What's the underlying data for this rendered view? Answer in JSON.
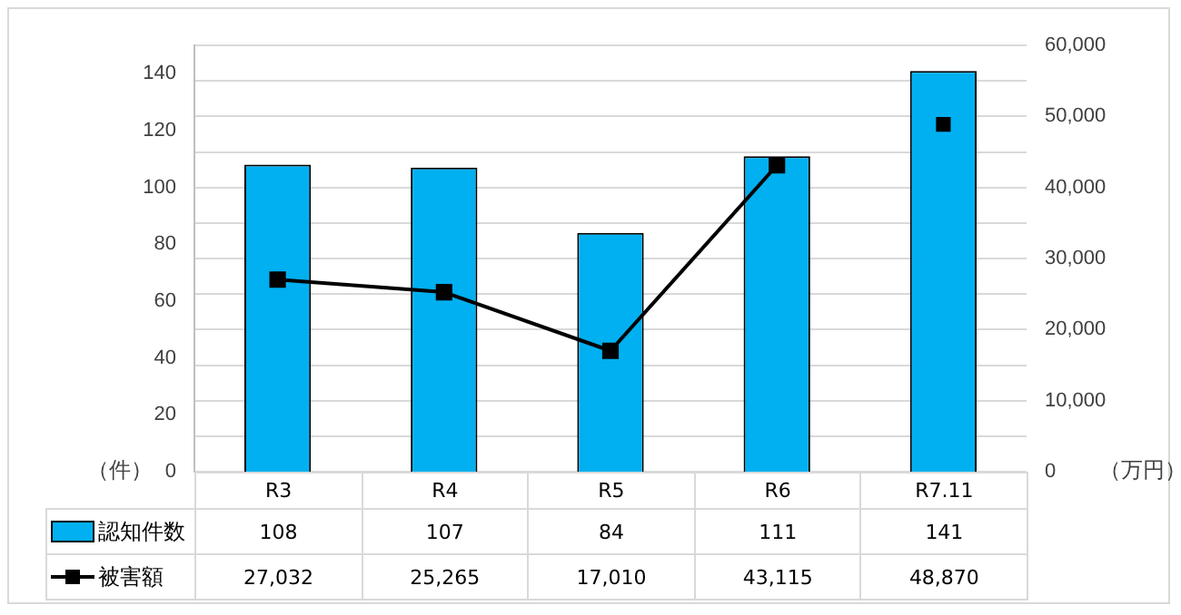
{
  "chart_data": {
    "type": "bar",
    "categories": [
      "R3",
      "R4",
      "R5",
      "R6",
      "R7.11"
    ],
    "ylabel": "（件）",
    "y2label": "（万円）",
    "ylim": [
      0,
      150
    ],
    "yticks": [
      0,
      20,
      40,
      60,
      80,
      100,
      120,
      140
    ],
    "y2lim": [
      0,
      60000
    ],
    "y2ticks": [
      0,
      {
        "value": 5000,
        "label": null
      },
      {
        "value": 10000,
        "label": "10,000"
      },
      {
        "value": 15000,
        "label": null
      },
      {
        "value": 20000,
        "label": "20,000"
      },
      {
        "value": 25000,
        "label": null
      },
      {
        "value": 30000,
        "label": "30,000"
      },
      {
        "value": 35000,
        "label": null
      },
      {
        "value": 40000,
        "label": "40,000"
      },
      {
        "value": 45000,
        "label": null
      },
      {
        "value": 50000,
        "label": "50,000"
      },
      {
        "value": 55000,
        "label": null
      },
      {
        "value": 60000,
        "label": "60,000"
      }
    ],
    "grid": true,
    "legend": "bottom left",
    "series": [
      {
        "name": "認知件数",
        "color": "#00b0f0",
        "values": [
          108,
          107,
          84,
          111,
          141
        ],
        "value_labels": [
          "108",
          "107",
          "84",
          "111",
          "141"
        ]
      },
      {
        "name": "被害額",
        "type": "line",
        "axis": "y2",
        "color": "#000000",
        "marker": "square",
        "values": [
          27032,
          25265,
          17010,
          43115,
          null
        ],
        "value_labels": [
          "27,032",
          "25,265",
          "17,010",
          "43,115",
          "48,870"
        ]
      },
      {
        "type": "scatter",
        "axis": "y2",
        "color": "#000000",
        "marker": "square",
        "values": [
          null,
          null,
          null,
          null,
          48870
        ]
      }
    ]
  }
}
